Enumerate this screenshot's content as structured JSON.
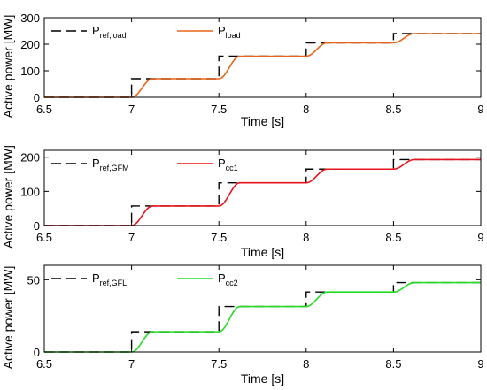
{
  "chart_data": [
    {
      "type": "line",
      "xlabel": "Time [s]",
      "ylabel": "Active power [MW]",
      "xlim": [
        6.5,
        9
      ],
      "ylim": [
        0,
        300
      ],
      "xticks": [
        "6.5",
        "7",
        "7.5",
        "8",
        "8.5",
        "9"
      ],
      "yticks": [
        "0",
        "100",
        "200",
        "300"
      ],
      "grid": false,
      "legend_position": "top-left",
      "series": [
        {
          "name_main": "P",
          "name_sub": "ref,load",
          "style": "dashed",
          "color": "#000000",
          "steps": [
            {
              "t": 6.5,
              "v": 0
            },
            {
              "t": 7,
              "v": 70
            },
            {
              "t": 7.5,
              "v": 155
            },
            {
              "t": 8,
              "v": 205
            },
            {
              "t": 8.5,
              "v": 240
            }
          ]
        },
        {
          "name_main": "P",
          "name_sub": "load",
          "style": "solid",
          "color": "#e8641a",
          "steps": [
            {
              "t": 6.5,
              "v": 0
            },
            {
              "t": 7,
              "v": 70
            },
            {
              "t": 7.5,
              "v": 155
            },
            {
              "t": 8,
              "v": 205
            },
            {
              "t": 8.5,
              "v": 240
            }
          ],
          "response_time_s": 0.12
        }
      ]
    },
    {
      "type": "line",
      "xlabel": "Time [s]",
      "ylabel": "Active power [MW]",
      "xlim": [
        6.5,
        9
      ],
      "ylim": [
        0,
        220
      ],
      "xticks": [
        "6.5",
        "7",
        "7.5",
        "8",
        "8.5",
        "9"
      ],
      "yticks": [
        "0",
        "100",
        "200"
      ],
      "grid": false,
      "legend_position": "top-left",
      "series": [
        {
          "name_main": "P",
          "name_sub": "ref,GFM",
          "style": "dashed",
          "color": "#000000",
          "steps": [
            {
              "t": 6.5,
              "v": 0
            },
            {
              "t": 7,
              "v": 57
            },
            {
              "t": 7.5,
              "v": 125
            },
            {
              "t": 8,
              "v": 165
            },
            {
              "t": 8.5,
              "v": 193
            }
          ]
        },
        {
          "name_main": "P",
          "name_sub": "cc1",
          "style": "solid",
          "color": "#e8141c",
          "steps": [
            {
              "t": 6.5,
              "v": 0
            },
            {
              "t": 7,
              "v": 57
            },
            {
              "t": 7.5,
              "v": 125
            },
            {
              "t": 8,
              "v": 165
            },
            {
              "t": 8.5,
              "v": 193
            }
          ],
          "response_time_s": 0.12
        }
      ]
    },
    {
      "type": "line",
      "xlabel": "Time [s]",
      "ylabel": "Active power [MW]",
      "xlim": [
        6.5,
        9
      ],
      "ylim": [
        0,
        60
      ],
      "xticks": [
        "6.5",
        "7",
        "7.5",
        "8",
        "8.5",
        "9"
      ],
      "yticks": [
        "0",
        "50"
      ],
      "grid": false,
      "legend_position": "top-left",
      "series": [
        {
          "name_main": "P",
          "name_sub": "ref,GFL",
          "style": "dashed",
          "color": "#000000",
          "steps": [
            {
              "t": 6.5,
              "v": 0
            },
            {
              "t": 7,
              "v": 14
            },
            {
              "t": 7.5,
              "v": 31.5
            },
            {
              "t": 8,
              "v": 41.5
            },
            {
              "t": 8.5,
              "v": 48
            }
          ]
        },
        {
          "name_main": "P",
          "name_sub": "cc2",
          "style": "solid",
          "color": "#22dd22",
          "steps": [
            {
              "t": 6.5,
              "v": 0
            },
            {
              "t": 7,
              "v": 14
            },
            {
              "t": 7.5,
              "v": 31.5
            },
            {
              "t": 8,
              "v": 41.5
            },
            {
              "t": 8.5,
              "v": 48
            }
          ],
          "response_time_s": 0.12
        }
      ]
    }
  ]
}
